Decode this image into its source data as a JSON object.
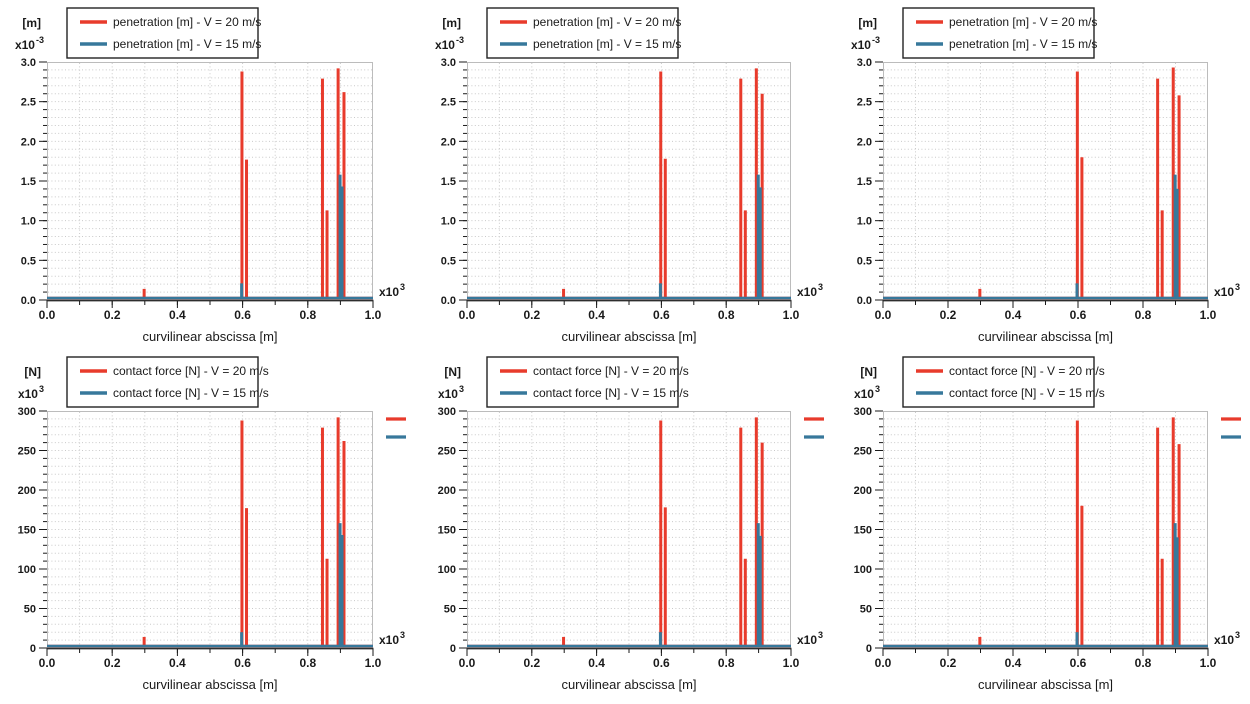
{
  "colors": {
    "red": "#e83b2c",
    "teal": "#37789b",
    "grid": "#cacaca",
    "frame": "#bcbcbc",
    "axis": "#2e2e2e",
    "text": "#1a1a1a",
    "legend_border": "#222222",
    "background": "#ffffff"
  },
  "chart_data": [
    {
      "id": "penetration-1",
      "type": "bar",
      "mark": "impulse-stem",
      "y_unit": "[m]",
      "y_multiplier": {
        "base": "x10",
        "exp": "-3"
      },
      "x_multiplier": {
        "base": "x10",
        "exp": "3"
      },
      "x_label": "curvilinear abscissa [m]",
      "xlim": [
        0,
        1.0
      ],
      "ylim": [
        0,
        3.0
      ],
      "grid_step_x": 0.1,
      "grid_step_y": 0.1,
      "minor_step_x": 0.1,
      "minor_step_y": 0.1,
      "x_ticks": {
        "values": [
          0,
          0.2,
          0.4,
          0.6,
          0.8,
          1.0
        ],
        "labels": [
          "0.0",
          "0.2",
          "0.4",
          "0.6",
          "0.8",
          "1.0"
        ]
      },
      "y_ticks": {
        "values": [
          0,
          0.5,
          1.0,
          1.5,
          2.0,
          2.5,
          3.0
        ],
        "labels": [
          "0.0",
          "0.5",
          "1.0",
          "1.5",
          "2.0",
          "2.5",
          "3.0"
        ]
      },
      "legend": [
        {
          "label": "penetration [m] - V = 20 m/s",
          "color_key": "red"
        },
        {
          "label": "penetration [m] - V = 15 m/s",
          "color_key": "teal"
        }
      ],
      "side_legend_markers": false,
      "series": [
        {
          "name": "V = 20 m/s",
          "color_key": "red",
          "spikes": [
            [
              0.298,
              0.14
            ],
            [
              0.598,
              2.88
            ],
            [
              0.612,
              1.77
            ],
            [
              0.845,
              2.79
            ],
            [
              0.859,
              1.13
            ],
            [
              0.893,
              2.92
            ],
            [
              0.911,
              2.62
            ]
          ]
        },
        {
          "name": "V = 15 m/s",
          "color_key": "teal",
          "spikes": [
            [
              0.597,
              0.21
            ],
            [
              0.899,
              1.58
            ],
            [
              0.905,
              1.43
            ]
          ]
        }
      ]
    },
    {
      "id": "penetration-2",
      "type": "bar",
      "mark": "impulse-stem",
      "y_unit": "[m]",
      "y_multiplier": {
        "base": "x10",
        "exp": "-3"
      },
      "x_multiplier": {
        "base": "x10",
        "exp": "3"
      },
      "x_label": "curvilinear abscissa [m]",
      "xlim": [
        0,
        1.0
      ],
      "ylim": [
        0,
        3.0
      ],
      "grid_step_x": 0.1,
      "grid_step_y": 0.1,
      "minor_step_x": 0.1,
      "minor_step_y": 0.1,
      "x_ticks": {
        "values": [
          0,
          0.2,
          0.4,
          0.6,
          0.8,
          1.0
        ],
        "labels": [
          "0.0",
          "0.2",
          "0.4",
          "0.6",
          "0.8",
          "1.0"
        ]
      },
      "y_ticks": {
        "values": [
          0,
          0.5,
          1.0,
          1.5,
          2.0,
          2.5,
          3.0
        ],
        "labels": [
          "0.0",
          "0.5",
          "1.0",
          "1.5",
          "2.0",
          "2.5",
          "3.0"
        ]
      },
      "legend": [
        {
          "label": "penetration [m] - V = 20 m/s",
          "color_key": "red"
        },
        {
          "label": "penetration [m] - V = 15 m/s",
          "color_key": "teal"
        }
      ],
      "side_legend_markers": false,
      "series": [
        {
          "name": "V = 20 m/s",
          "color_key": "red",
          "spikes": [
            [
              0.298,
              0.14
            ],
            [
              0.598,
              2.88
            ],
            [
              0.612,
              1.78
            ],
            [
              0.845,
              2.79
            ],
            [
              0.859,
              1.13
            ],
            [
              0.893,
              2.92
            ],
            [
              0.911,
              2.6
            ]
          ]
        },
        {
          "name": "V = 15 m/s",
          "color_key": "teal",
          "spikes": [
            [
              0.597,
              0.21
            ],
            [
              0.899,
              1.58
            ],
            [
              0.905,
              1.42
            ]
          ]
        }
      ]
    },
    {
      "id": "penetration-3",
      "type": "bar",
      "mark": "impulse-stem",
      "y_unit": "[m]",
      "y_multiplier": {
        "base": "x10",
        "exp": "-3"
      },
      "x_multiplier": {
        "base": "x10",
        "exp": "3"
      },
      "x_label": "curvilinear abscissa [m]",
      "xlim": [
        0,
        1.0
      ],
      "ylim": [
        0,
        3.0
      ],
      "grid_step_x": 0.1,
      "grid_step_y": 0.1,
      "minor_step_x": 0.1,
      "minor_step_y": 0.1,
      "x_ticks": {
        "values": [
          0,
          0.2,
          0.4,
          0.6,
          0.8,
          1.0
        ],
        "labels": [
          "0.0",
          "0.2",
          "0.4",
          "0.6",
          "0.8",
          "1.0"
        ]
      },
      "y_ticks": {
        "values": [
          0,
          0.5,
          1.0,
          1.5,
          2.0,
          2.5,
          3.0
        ],
        "labels": [
          "0.0",
          "0.5",
          "1.0",
          "1.5",
          "2.0",
          "2.5",
          "3.0"
        ]
      },
      "legend": [
        {
          "label": "penetration [m] - V = 20 m/s",
          "color_key": "red"
        },
        {
          "label": "penetration [m] - V = 15 m/s",
          "color_key": "teal"
        }
      ],
      "side_legend_markers": false,
      "series": [
        {
          "name": "V = 20 m/s",
          "color_key": "red",
          "spikes": [
            [
              0.298,
              0.14
            ],
            [
              0.598,
              2.88
            ],
            [
              0.612,
              1.8
            ],
            [
              0.845,
              2.79
            ],
            [
              0.859,
              1.13
            ],
            [
              0.893,
              2.93
            ],
            [
              0.911,
              2.58
            ]
          ]
        },
        {
          "name": "V = 15 m/s",
          "color_key": "teal",
          "spikes": [
            [
              0.597,
              0.21
            ],
            [
              0.899,
              1.58
            ],
            [
              0.905,
              1.4
            ]
          ]
        }
      ]
    },
    {
      "id": "contact-force-1",
      "type": "bar",
      "mark": "impulse-stem",
      "y_unit": "[N]",
      "y_multiplier": {
        "base": "x10",
        "exp": "3"
      },
      "x_multiplier": {
        "base": "x10",
        "exp": "3"
      },
      "x_label": "curvilinear abscissa [m]",
      "xlim": [
        0,
        1.0
      ],
      "ylim": [
        0,
        300
      ],
      "grid_step_x": 0.1,
      "grid_step_y": 10,
      "minor_step_x": 0.1,
      "minor_step_y": 10,
      "x_ticks": {
        "values": [
          0,
          0.2,
          0.4,
          0.6,
          0.8,
          1.0
        ],
        "labels": [
          "0.0",
          "0.2",
          "0.4",
          "0.6",
          "0.8",
          "1.0"
        ]
      },
      "y_ticks": {
        "values": [
          0,
          50,
          100,
          150,
          200,
          250,
          300
        ],
        "labels": [
          "0",
          "50",
          "100",
          "150",
          "200",
          "250",
          "300"
        ]
      },
      "legend": [
        {
          "label": "contact force [N] - V = 20 m/s",
          "color_key": "red"
        },
        {
          "label": "contact force [N] - V = 15 m/s",
          "color_key": "teal"
        }
      ],
      "side_legend_markers": true,
      "series": [
        {
          "name": "V = 20 m/s",
          "color_key": "red",
          "spikes": [
            [
              0.298,
              14
            ],
            [
              0.598,
              288
            ],
            [
              0.612,
              177
            ],
            [
              0.845,
              279
            ],
            [
              0.859,
              113
            ],
            [
              0.893,
              292
            ],
            [
              0.911,
              262
            ]
          ]
        },
        {
          "name": "V = 15 m/s",
          "color_key": "teal",
          "spikes": [
            [
              0.597,
              20
            ],
            [
              0.899,
              158
            ],
            [
              0.905,
              143
            ]
          ]
        }
      ]
    },
    {
      "id": "contact-force-2",
      "type": "bar",
      "mark": "impulse-stem",
      "y_unit": "[N]",
      "y_multiplier": {
        "base": "x10",
        "exp": "3"
      },
      "x_multiplier": {
        "base": "x10",
        "exp": "3"
      },
      "x_label": "curvilinear abscissa [m]",
      "xlim": [
        0,
        1.0
      ],
      "ylim": [
        0,
        300
      ],
      "grid_step_x": 0.1,
      "grid_step_y": 10,
      "minor_step_x": 0.1,
      "minor_step_y": 10,
      "x_ticks": {
        "values": [
          0,
          0.2,
          0.4,
          0.6,
          0.8,
          1.0
        ],
        "labels": [
          "0.0",
          "0.2",
          "0.4",
          "0.6",
          "0.8",
          "1.0"
        ]
      },
      "y_ticks": {
        "values": [
          0,
          50,
          100,
          150,
          200,
          250,
          300
        ],
        "labels": [
          "0",
          "50",
          "100",
          "150",
          "200",
          "250",
          "300"
        ]
      },
      "legend": [
        {
          "label": "contact force [N] - V = 20 m/s",
          "color_key": "red"
        },
        {
          "label": "contact force [N] - V = 15 m/s",
          "color_key": "teal"
        }
      ],
      "side_legend_markers": true,
      "series": [
        {
          "name": "V = 20 m/s",
          "color_key": "red",
          "spikes": [
            [
              0.298,
              14
            ],
            [
              0.598,
              288
            ],
            [
              0.612,
              178
            ],
            [
              0.845,
              279
            ],
            [
              0.859,
              113
            ],
            [
              0.893,
              292
            ],
            [
              0.911,
              260
            ]
          ]
        },
        {
          "name": "V = 15 m/s",
          "color_key": "teal",
          "spikes": [
            [
              0.597,
              20
            ],
            [
              0.899,
              158
            ],
            [
              0.905,
              142
            ]
          ]
        }
      ]
    },
    {
      "id": "contact-force-3",
      "type": "bar",
      "mark": "impulse-stem",
      "y_unit": "[N]",
      "y_multiplier": {
        "base": "x10",
        "exp": "3"
      },
      "x_multiplier": {
        "base": "x10",
        "exp": "3"
      },
      "x_label": "curvilinear abscissa [m]",
      "xlim": [
        0,
        1.0
      ],
      "ylim": [
        0,
        300
      ],
      "grid_step_x": 0.1,
      "grid_step_y": 10,
      "minor_step_x": 0.1,
      "minor_step_y": 10,
      "x_ticks": {
        "values": [
          0,
          0.2,
          0.4,
          0.6,
          0.8,
          1.0
        ],
        "labels": [
          "0.0",
          "0.2",
          "0.4",
          "0.6",
          "0.8",
          "1.0"
        ]
      },
      "y_ticks": {
        "values": [
          0,
          50,
          100,
          150,
          200,
          250,
          300
        ],
        "labels": [
          "0",
          "50",
          "100",
          "150",
          "200",
          "250",
          "300"
        ]
      },
      "legend": [
        {
          "label": "contact force [N] - V = 20 m/s",
          "color_key": "red"
        },
        {
          "label": "contact force [N] - V = 15 m/s",
          "color_key": "teal"
        }
      ],
      "side_legend_markers": true,
      "series": [
        {
          "name": "V = 20 m/s",
          "color_key": "red",
          "spikes": [
            [
              0.298,
              14
            ],
            [
              0.598,
              288
            ],
            [
              0.612,
              180
            ],
            [
              0.845,
              279
            ],
            [
              0.859,
              113
            ],
            [
              0.893,
              292
            ],
            [
              0.911,
              258
            ]
          ]
        },
        {
          "name": "V = 15 m/s",
          "color_key": "teal",
          "spikes": [
            [
              0.597,
              20
            ],
            [
              0.899,
              158
            ],
            [
              0.905,
              140
            ]
          ]
        }
      ]
    }
  ]
}
